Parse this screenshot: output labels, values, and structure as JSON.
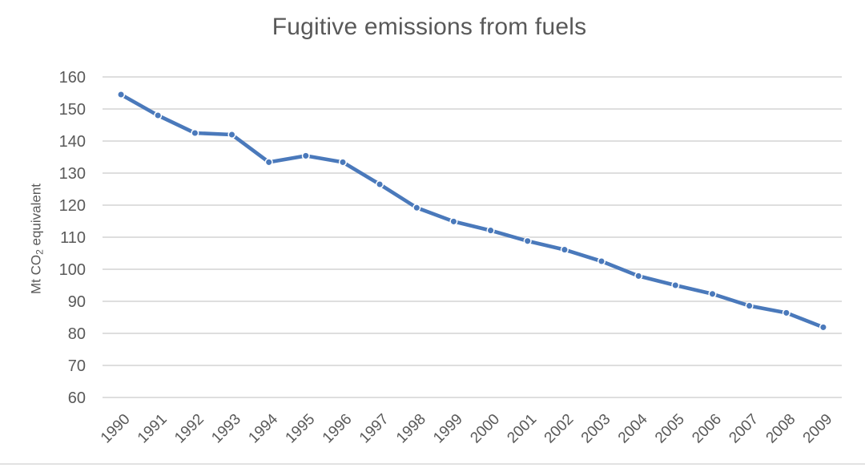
{
  "window": {
    "background": "#ffffff",
    "bottom_rule_color": "#e2e2e2"
  },
  "chart_data": {
    "type": "line",
    "title": "Fugitive emissions from fuels",
    "xlabel": "",
    "ylabel": "Mt CO₂ equivalent",
    "ylabel_parts": {
      "prefix": "Mt CO",
      "subscript": "2",
      "suffix": " equivalent"
    },
    "categories": [
      "1990",
      "1991",
      "1992",
      "1993",
      "1994",
      "1995",
      "1996",
      "1997",
      "1998",
      "1999",
      "2000",
      "2001",
      "2002",
      "2003",
      "2004",
      "2005",
      "2006",
      "2007",
      "2008",
      "2009"
    ],
    "series": [
      {
        "name": "Fugitive emissions from fuels",
        "values": [
          154.5,
          148.0,
          142.5,
          142.0,
          133.4,
          135.4,
          133.4,
          126.5,
          119.2,
          114.9,
          112.1,
          108.8,
          106.1,
          102.5,
          97.9,
          95.0,
          92.3,
          88.6,
          86.4,
          81.9
        ]
      }
    ],
    "ylim": [
      60,
      160
    ],
    "yticks": [
      160,
      150,
      140,
      130,
      120,
      110,
      100,
      90,
      80,
      70,
      60
    ],
    "grid": true,
    "legend": "none",
    "x_label_rotation": -45,
    "marker_style": "circle",
    "colors": {
      "line": "#4a79bb",
      "marker_fill": "#4a79bb",
      "marker_border": "#ffffff",
      "gridline": "#d9d9d9",
      "tick_text": "#595959",
      "title_text": "#595959"
    }
  }
}
